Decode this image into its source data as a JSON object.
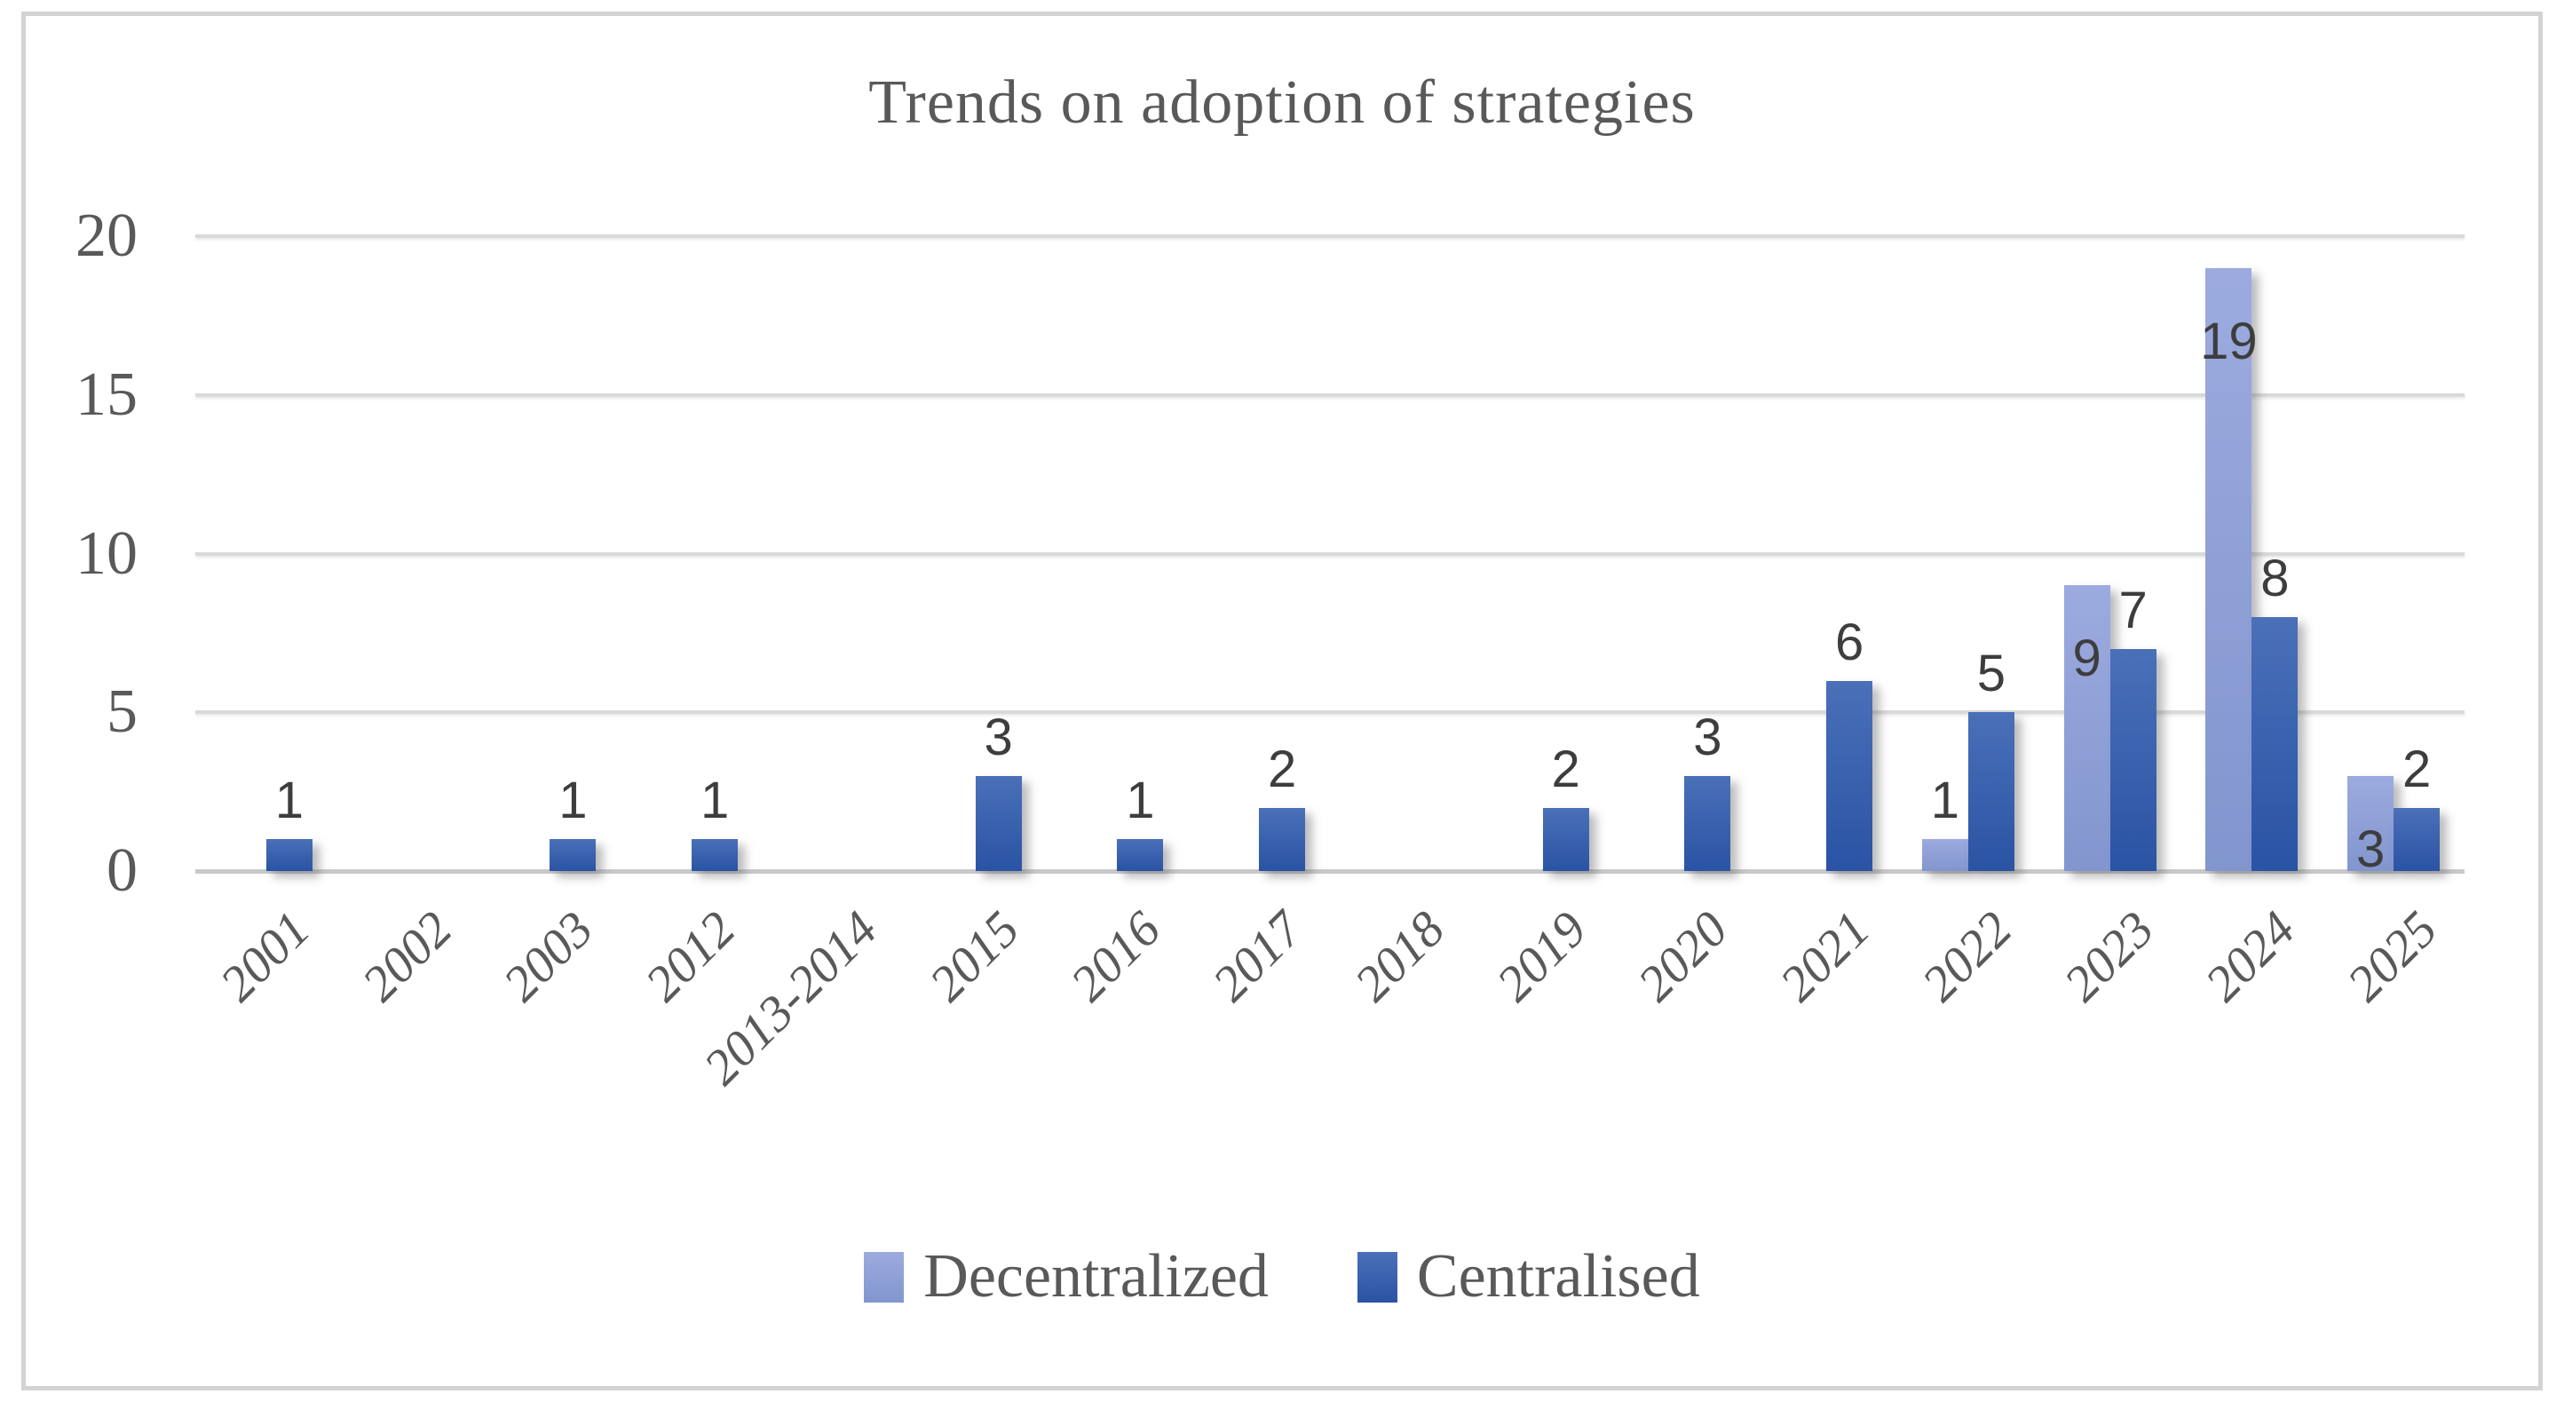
{
  "chart_data": {
    "type": "bar",
    "title": "Trends on adoption of strategies",
    "categories": [
      "2001",
      "2002",
      "2003",
      "2012",
      "2013-2014",
      "2015",
      "2016",
      "2017",
      "2018",
      "2019",
      "2020",
      "2021",
      "2022",
      "2023",
      "2024",
      "2025"
    ],
    "series": [
      {
        "name": "Decentralized",
        "values": [
          0,
          0,
          0,
          0,
          0,
          0,
          0,
          0,
          0,
          0,
          0,
          0,
          1,
          9,
          19,
          3
        ],
        "color_top": "#9cabdf",
        "color_bottom": "#8295ce",
        "label_position": "inside-end"
      },
      {
        "name": "Centralised",
        "values": [
          1,
          0,
          1,
          1,
          0,
          3,
          1,
          2,
          0,
          2,
          3,
          6,
          5,
          7,
          8,
          2
        ],
        "color_top": "#4a70b8",
        "color_bottom": "#2a53a4",
        "label_position": "outside-end"
      }
    ],
    "xlabel": "",
    "ylabel": "",
    "ylim": [
      0,
      20
    ],
    "yticks": [
      0,
      5,
      10,
      15,
      20
    ],
    "grid": true,
    "legend_position": "bottom"
  },
  "colors": {
    "grid_line": "#d9d9d9",
    "axis_line": "#c9c9c9",
    "axis_text": "#595959",
    "data_label_text": "#3d3d3d",
    "figure_border": "#d3d3d3",
    "background": "#ffffff"
  }
}
